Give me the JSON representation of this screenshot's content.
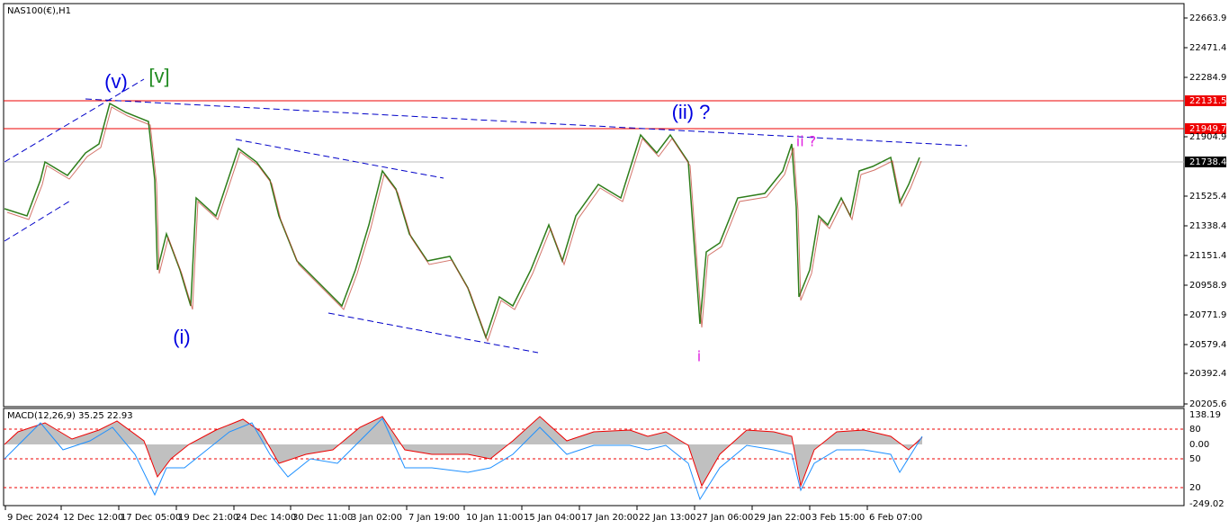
{
  "header": {
    "symbol": "NAS100(€),H1"
  },
  "price_axis": {
    "labels": [
      "22663.9",
      "22471.4",
      "22284.9",
      "21904.9",
      "21525.4",
      "21338.4",
      "21151.4",
      "20958.9",
      "20771.9",
      "20579.4",
      "20392.4",
      "20205.6"
    ],
    "levels": [
      "22131.5",
      "21949.7"
    ],
    "current": "21738.4"
  },
  "annotations": {
    "wave_v": "(v)",
    "wave_v_major": "[v]",
    "wave_i": "(i)",
    "wave_ii": "(ii) ?",
    "wave_small_ii": "ii ?",
    "wave_small_i": "i"
  },
  "indicator": {
    "label": "MACD(12,26,9) 35.25 22.93",
    "labels": [
      "138.19",
      "80",
      "0.00",
      "50",
      "20",
      "-249.02"
    ]
  },
  "time_axis": {
    "labels": [
      "9 Dec 2024",
      "12 Dec 12:00",
      "17 Dec 05:00",
      "19 Dec 21:00",
      "24 Dec 14:00",
      "30 Dec 11:00",
      "3 Jan 02:00",
      "7 Jan 19:00",
      "10 Jan 11:00",
      "15 Jan 04:00",
      "17 Jan 20:00",
      "22 Jan 13:00",
      "27 Jan 06:00",
      "29 Jan 22:00",
      "3 Feb 15:00",
      "6 Feb 07:00"
    ]
  }
}
